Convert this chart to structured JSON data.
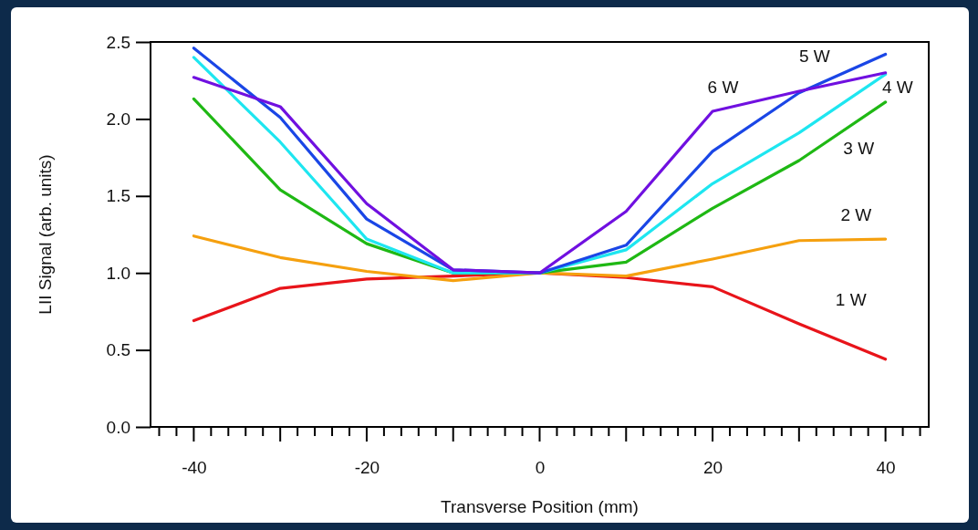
{
  "chart_data": {
    "type": "line",
    "xlabel": "Transverse Position (mm)",
    "ylabel": "LII Signal (arb. units)",
    "x": [
      -40,
      -30,
      -20,
      -10,
      0,
      10,
      20,
      30,
      40
    ],
    "xlim": [
      -45,
      45
    ],
    "xticks": [
      {
        "value": -44,
        "label": null
      },
      {
        "value": -42,
        "label": null
      },
      -40,
      {
        "value": -38,
        "label": null
      },
      {
        "value": -36,
        "label": null
      },
      {
        "value": -34,
        "label": null
      },
      {
        "value": -32,
        "label": null
      },
      {
        "value": -30,
        "label": null
      },
      {
        "value": -28,
        "label": null
      },
      {
        "value": -26,
        "label": null
      },
      {
        "value": -24,
        "label": null
      },
      {
        "value": -22,
        "label": null
      },
      -20,
      {
        "value": -18,
        "label": null
      },
      {
        "value": -16,
        "label": null
      },
      {
        "value": -14,
        "label": null
      },
      {
        "value": -12,
        "label": null
      },
      {
        "value": -10,
        "label": null
      },
      {
        "value": -8,
        "label": null
      },
      {
        "value": -6,
        "label": null
      },
      {
        "value": -4,
        "label": null
      },
      {
        "value": -2,
        "label": null
      },
      0,
      {
        "value": 2,
        "label": null
      },
      {
        "value": 4,
        "label": null
      },
      {
        "value": 6,
        "label": null
      },
      {
        "value": 8,
        "label": null
      },
      {
        "value": 10,
        "label": null
      },
      {
        "value": 12,
        "label": null
      },
      {
        "value": 14,
        "label": null
      },
      {
        "value": 16,
        "label": null
      },
      {
        "value": 18,
        "label": null
      },
      20,
      {
        "value": 22,
        "label": null
      },
      {
        "value": 24,
        "label": null
      },
      {
        "value": 26,
        "label": null
      },
      {
        "value": 28,
        "label": null
      },
      {
        "value": 30,
        "label": null
      },
      {
        "value": 32,
        "label": null
      },
      {
        "value": 34,
        "label": null
      },
      {
        "value": 36,
        "label": null
      },
      {
        "value": 38,
        "label": null
      },
      40,
      {
        "value": 42,
        "label": null
      },
      {
        "value": 44,
        "label": null
      }
    ],
    "ylim": [
      0,
      2.5
    ],
    "yticks": [
      {
        "value": 0,
        "label": "0.0"
      },
      0.5,
      {
        "value": 1,
        "label": "1.0"
      },
      1.5,
      {
        "value": 2,
        "label": "2.0"
      },
      2.5
    ],
    "grid": false,
    "line_style": "solid",
    "marker": "none",
    "series": [
      {
        "name": "1 W",
        "color": "#e8141a",
        "values": [
          0.69,
          0.9,
          0.96,
          0.98,
          1.0,
          0.97,
          0.91,
          0.67,
          0.44
        ]
      },
      {
        "name": "2 W",
        "color": "#f5a00f",
        "values": [
          1.24,
          1.1,
          1.01,
          0.95,
          1.0,
          0.98,
          1.09,
          1.21,
          1.22
        ]
      },
      {
        "name": "3 W",
        "color": "#1fb814",
        "values": [
          2.13,
          1.54,
          1.19,
          1.0,
          1.0,
          1.07,
          1.42,
          1.73,
          2.11
        ]
      },
      {
        "name": "4 W",
        "color": "#1ee6f0",
        "values": [
          2.4,
          1.85,
          1.22,
          1.0,
          1.0,
          1.15,
          1.58,
          1.91,
          2.29
        ]
      },
      {
        "name": "5 W",
        "color": "#1a46e6",
        "values": [
          2.46,
          2.01,
          1.35,
          1.02,
          1.0,
          1.18,
          1.79,
          2.17,
          2.42
        ]
      },
      {
        "name": "6 W",
        "color": "#7010e0",
        "values": [
          2.27,
          2.08,
          1.45,
          1.02,
          1.0,
          1.4,
          2.05,
          2.18,
          2.3
        ]
      }
    ]
  }
}
